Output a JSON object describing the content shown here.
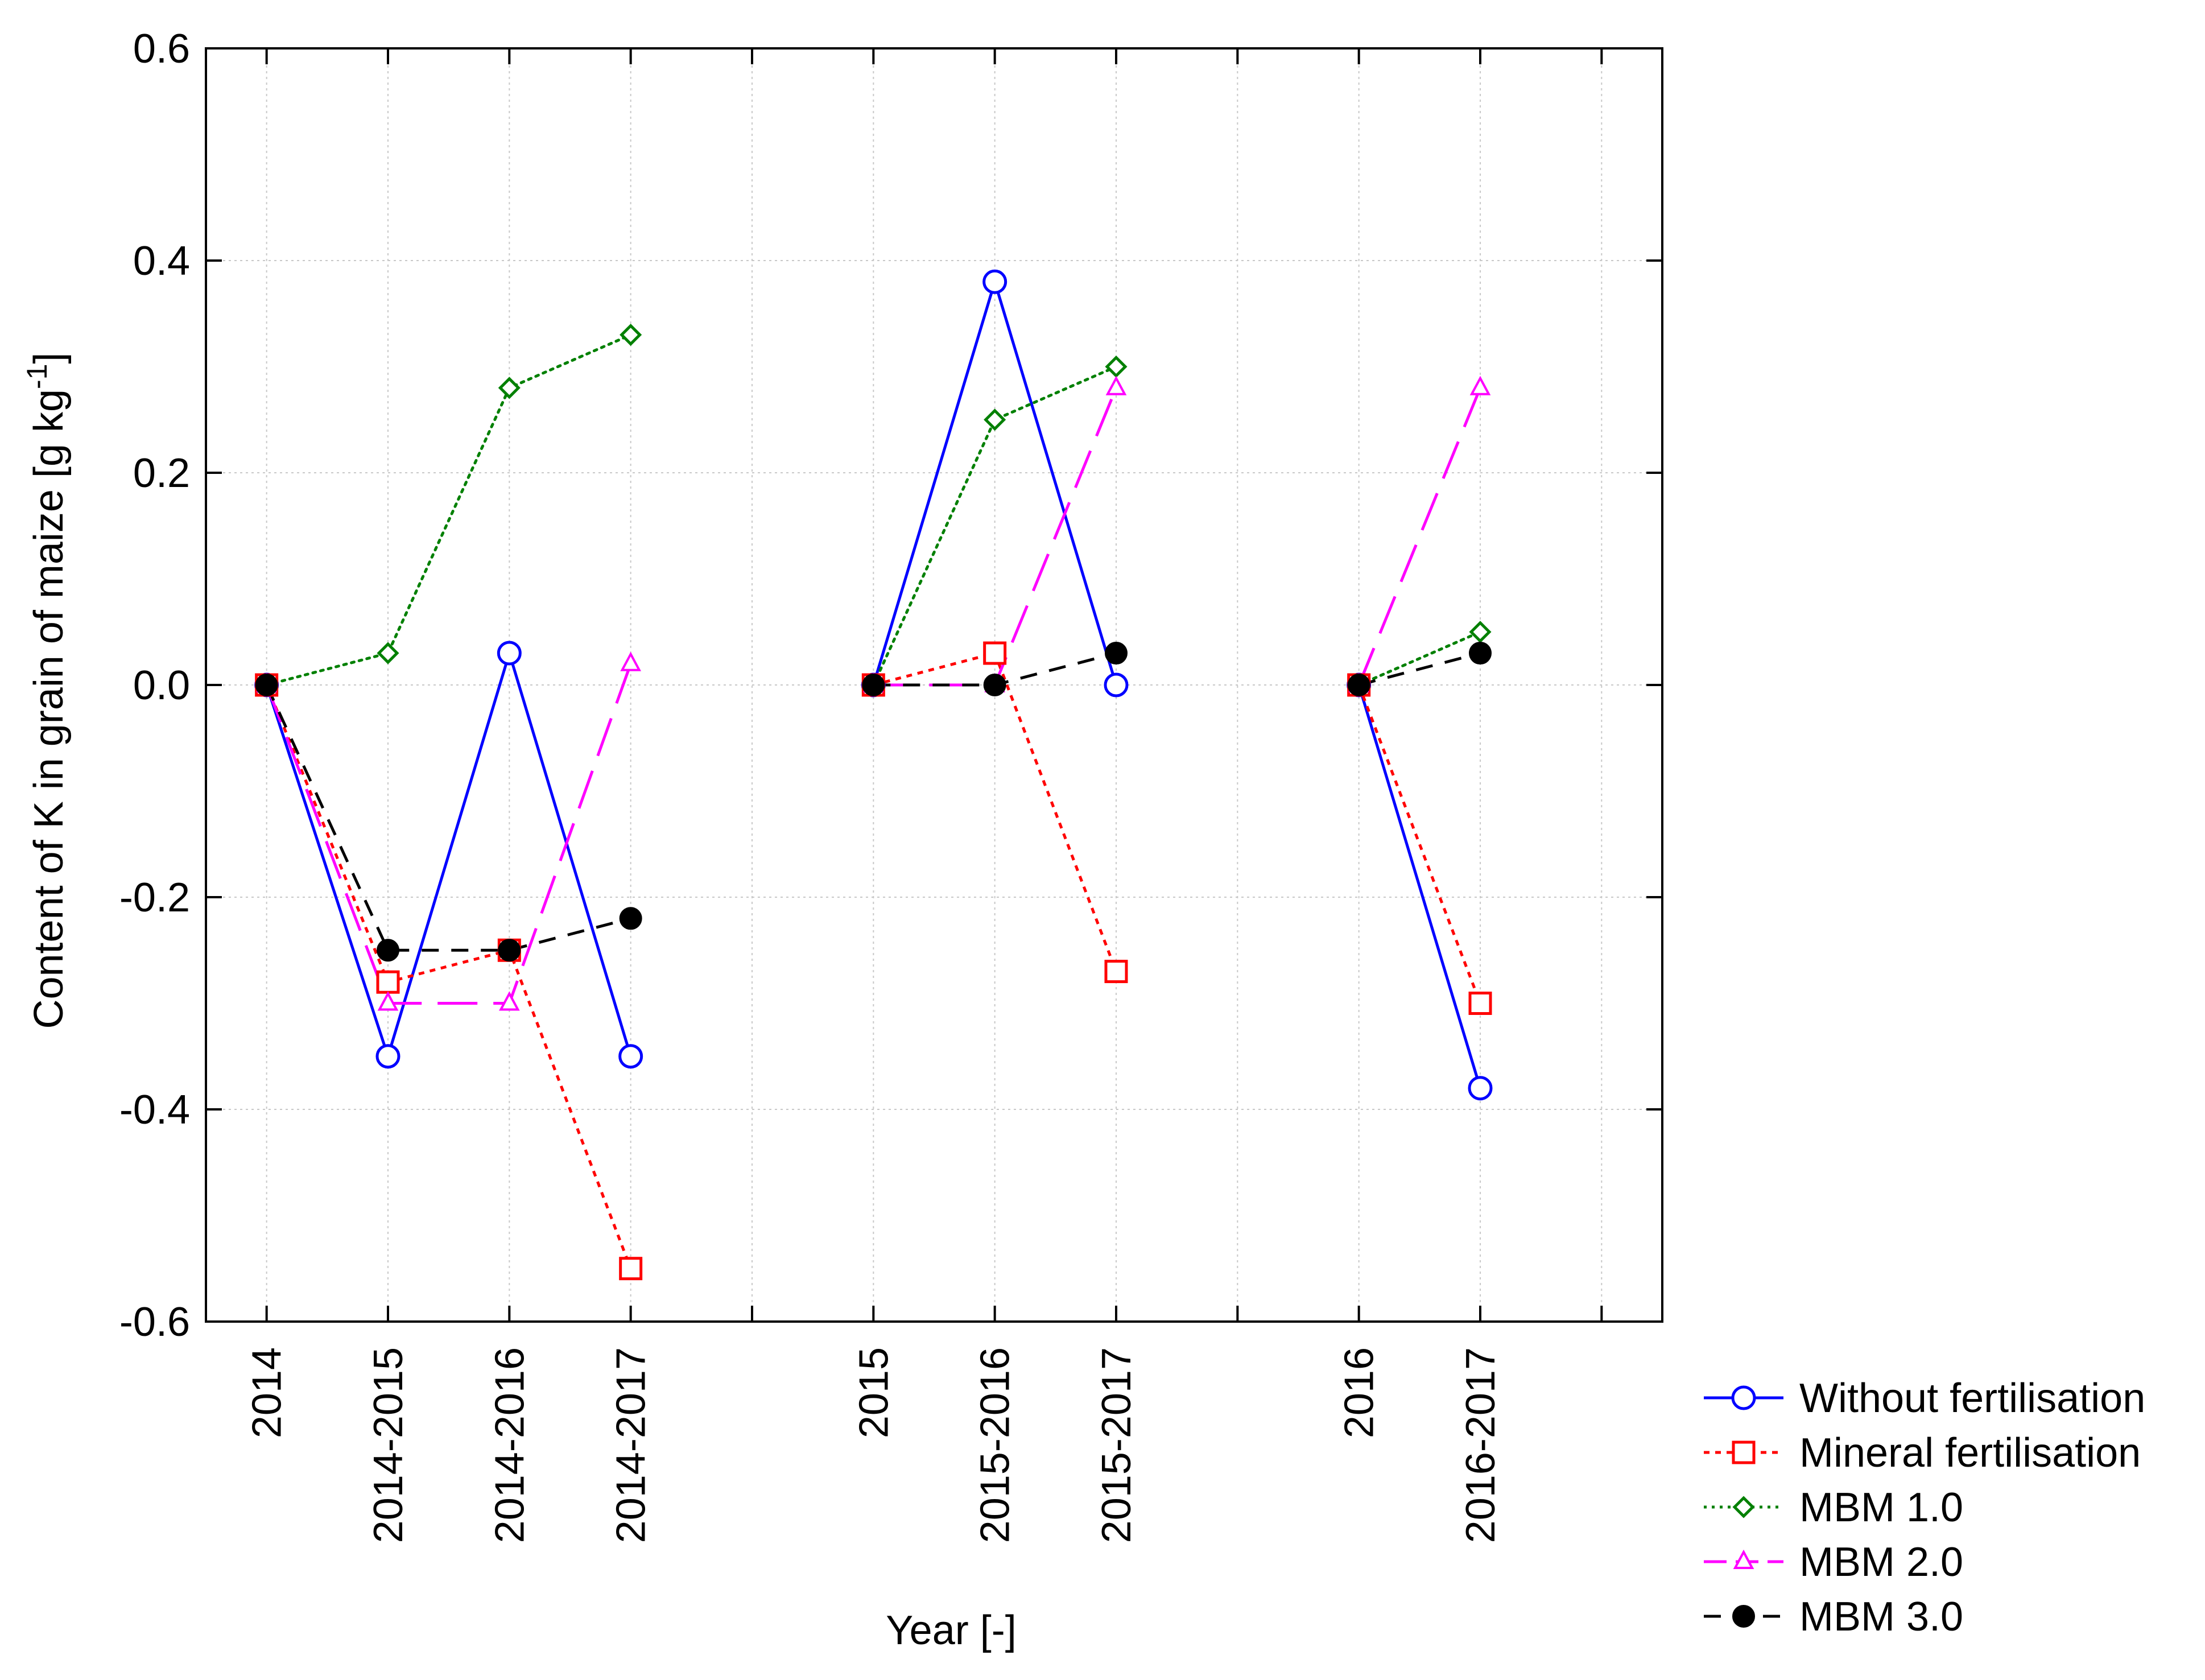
{
  "chart_data": {
    "type": "line",
    "title": "",
    "xlabel": "Year [-]",
    "ylabel": {
      "prefix": "Content of K in grain of maize [g kg",
      "superscript": "-1",
      "suffix": "]"
    },
    "ylim": [
      -0.6,
      0.6
    ],
    "yticks": [
      -0.6,
      -0.4,
      -0.2,
      0.0,
      0.2,
      0.4,
      0.6
    ],
    "ytick_labels": [
      "-0.6",
      "-0.4",
      "-0.2",
      "0.0",
      "0.2",
      "0.4",
      "0.6"
    ],
    "grid": true,
    "legend_position": "bottom-right outside",
    "slots": [
      "2014",
      "2014-2015",
      "2014-2016",
      "2014-2017",
      "",
      "2015",
      "2015-2016",
      "2015-2017",
      "",
      "2016",
      "2016-2017",
      ""
    ],
    "groups": [
      [
        "2014",
        "2014-2015",
        "2014-2016",
        "2014-2017"
      ],
      [
        "2015",
        "2015-2016",
        "2015-2017"
      ],
      [
        "2016",
        "2016-2017"
      ]
    ],
    "series": [
      {
        "name": "Without fertilisation",
        "color": "#0000ff",
        "marker": "circle",
        "dash": "solid",
        "values": {
          "2014": 0.0,
          "2014-2015": -0.35,
          "2014-2016": 0.03,
          "2014-2017": -0.35,
          "2015": 0.0,
          "2015-2016": 0.38,
          "2015-2017": 0.0,
          "2016": 0.0,
          "2016-2017": -0.38
        }
      },
      {
        "name": "Mineral fertilisation",
        "color": "#ff0000",
        "marker": "square",
        "dash": "short-dash",
        "values": {
          "2014": 0.0,
          "2014-2015": -0.28,
          "2014-2016": -0.25,
          "2014-2017": -0.55,
          "2015": 0.0,
          "2015-2016": 0.03,
          "2015-2017": -0.27,
          "2016": 0.0,
          "2016-2017": -0.3
        }
      },
      {
        "name": "MBM 1.0",
        "color": "#008000",
        "marker": "diamond",
        "dash": "dotted",
        "values": {
          "2014": 0.0,
          "2014-2015": 0.03,
          "2014-2016": 0.28,
          "2014-2017": 0.33,
          "2015": 0.0,
          "2015-2016": 0.25,
          "2015-2017": 0.3,
          "2016": 0.0,
          "2016-2017": 0.05
        }
      },
      {
        "name": "MBM 2.0",
        "color": "#ff00ff",
        "marker": "triangle",
        "dash": "long-dash",
        "values": {
          "2014": 0.0,
          "2014-2015": -0.3,
          "2014-2016": -0.3,
          "2014-2017": 0.02,
          "2015": 0.0,
          "2015-2016": 0.0,
          "2015-2017": 0.28,
          "2016": 0.0,
          "2016-2017": 0.28
        }
      },
      {
        "name": "MBM 3.0",
        "color": "#000000",
        "marker": "filled-circle",
        "dash": "dash",
        "values": {
          "2014": 0.0,
          "2014-2015": -0.25,
          "2014-2016": -0.25,
          "2014-2017": -0.22,
          "2015": 0.0,
          "2015-2016": 0.0,
          "2015-2017": 0.03,
          "2016": 0.0,
          "2016-2017": 0.03
        }
      }
    ]
  }
}
